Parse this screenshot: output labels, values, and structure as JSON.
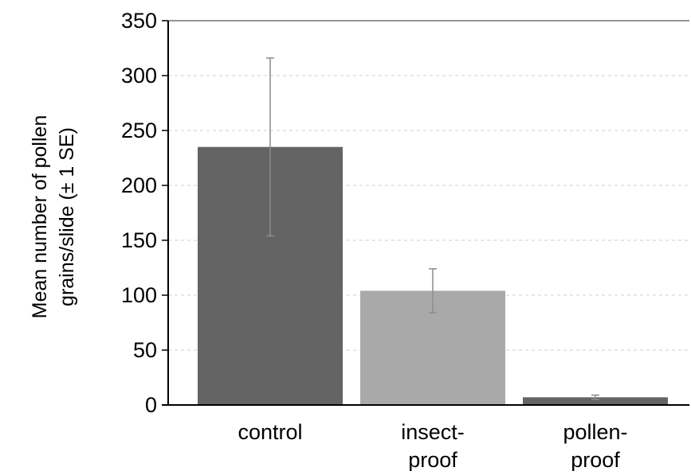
{
  "chart_data": {
    "type": "bar",
    "categories": [
      {
        "lines": [
          "control"
        ]
      },
      {
        "lines": [
          "insect-",
          "proof"
        ]
      },
      {
        "lines": [
          "pollen-",
          "proof"
        ]
      }
    ],
    "series": [
      {
        "values": [
          235,
          104,
          7
        ],
        "error": [
          81,
          20,
          2
        ],
        "colors": [
          "#646464",
          "#a9a9a9",
          "#646464"
        ]
      }
    ],
    "ylabel_lines": [
      "Mean number of pollen",
      "grains/slide (± 1 SE)"
    ],
    "ylim": [
      0,
      350
    ],
    "yticks": [
      0,
      50,
      100,
      150,
      200,
      250,
      300,
      350
    ],
    "grid": "horizontal dashed",
    "legend": "none",
    "colors": {
      "axis": "#000000",
      "grid": "#cfcfcf",
      "error_bar": "#8c8c8c",
      "frame": "#555555"
    }
  }
}
